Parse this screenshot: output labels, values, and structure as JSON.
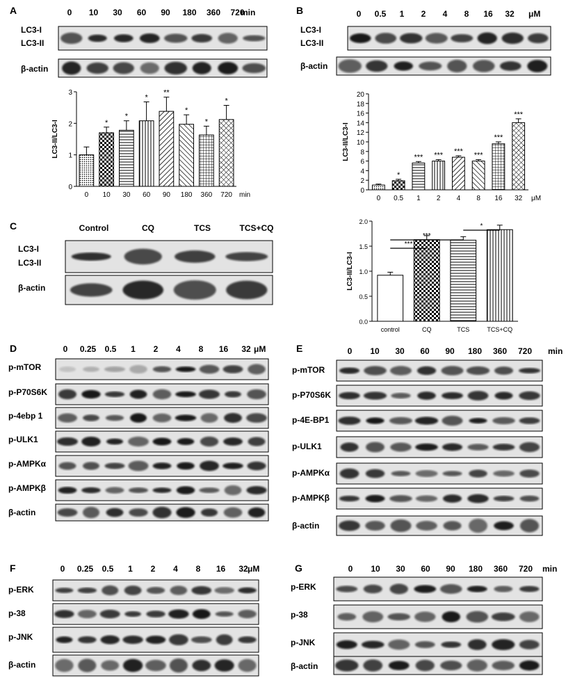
{
  "panels": {
    "A": {
      "letter": "A",
      "lanes": [
        "0",
        "10",
        "30",
        "60",
        "90",
        "180",
        "360",
        "720"
      ],
      "lane_unit": "min",
      "blot_rows": [
        "LC3-I",
        "LC3-II",
        "β-actin"
      ],
      "chart": {
        "ylabel": "LC3-II/LC3-I",
        "ylim": [
          0,
          3
        ],
        "yticks": [
          "0",
          "1",
          "2",
          "3"
        ],
        "x_unit": "min"
      }
    },
    "B": {
      "letter": "B",
      "lanes": [
        "0",
        "0.5",
        "1",
        "2",
        "4",
        "8",
        "16",
        "32"
      ],
      "lane_unit": "μM",
      "blot_rows": [
        "LC3-I",
        "LC3-II",
        "β-actin"
      ],
      "chart": {
        "ylabel": "LC3-II/LC3-I",
        "ylim": [
          0,
          20
        ],
        "yticks": [
          "0",
          "2",
          "4",
          "6",
          "8",
          "10",
          "12",
          "14",
          "16",
          "18",
          "20"
        ],
        "x_unit": "μM"
      }
    },
    "C": {
      "letter": "C",
      "lanes": [
        "Control",
        "CQ",
        "TCS",
        "TCS+CQ"
      ],
      "blot_rows": [
        "LC3-I",
        "LC3-II",
        "β-actin"
      ],
      "chart": {
        "ylabel": "LC3-II/LC3-I",
        "ylim": [
          0,
          2
        ],
        "yticks": [
          "0.0",
          "0.5",
          "1.0",
          "1.5",
          "2.0"
        ],
        "brackets": [
          {
            "from": 0,
            "to": 1,
            "label": "***"
          },
          {
            "from": 0,
            "to": 2,
            "label": "***"
          },
          {
            "from": 2,
            "to": 3,
            "label": "*"
          }
        ]
      }
    },
    "D": {
      "letter": "D",
      "lanes": [
        "0",
        "0.25",
        "0.5",
        "1",
        "2",
        "4",
        "8",
        "16",
        "32"
      ],
      "lane_unit": "μM",
      "rows": [
        "p-mTOR",
        "p-P70S6K",
        "p-4ebp 1",
        "p-ULK1",
        "p-AMPKα",
        "p-AMPKβ",
        "β-actin"
      ]
    },
    "E": {
      "letter": "E",
      "lanes": [
        "0",
        "10",
        "30",
        "60",
        "90",
        "180",
        "360",
        "720"
      ],
      "lane_unit": "min",
      "rows": [
        "p-mTOR",
        "p-P70S6K",
        "p-4E-BP1",
        "p-ULK1",
        "p-AMPKα",
        "p-AMPKβ",
        "β-actin"
      ]
    },
    "F": {
      "letter": "F",
      "lanes": [
        "0",
        "0.25",
        "0.5",
        "1",
        "2",
        "4",
        "8",
        "16",
        "32"
      ],
      "lane_unit": "μM",
      "rows": [
        "p-ERK",
        "p-38",
        "p-JNK",
        "β-actin"
      ]
    },
    "G": {
      "letter": "G",
      "lanes": [
        "0",
        "10",
        "30",
        "60",
        "90",
        "180",
        "360",
        "720"
      ],
      "lane_unit": "min",
      "rows": [
        "p-ERK",
        "p-38",
        "p-JNK",
        "β-actin"
      ]
    }
  },
  "chart_data": [
    {
      "panel": "A",
      "type": "bar",
      "categories": [
        "0",
        "10",
        "30",
        "60",
        "90",
        "180",
        "360",
        "720"
      ],
      "values": [
        1.0,
        1.7,
        1.78,
        2.08,
        2.38,
        1.97,
        1.63,
        2.12
      ],
      "errors": [
        0.25,
        0.18,
        0.3,
        0.6,
        0.45,
        0.3,
        0.28,
        0.45
      ],
      "significance": [
        "",
        "*",
        "*",
        "*",
        "**",
        "*",
        "*",
        "*"
      ],
      "ylabel": "LC3-II/LC3-I",
      "xlabel": "min",
      "ylim": [
        0,
        3
      ]
    },
    {
      "panel": "B",
      "type": "bar",
      "categories": [
        "0",
        "0.5",
        "1",
        "2",
        "4",
        "8",
        "16",
        "32"
      ],
      "values": [
        1.0,
        1.9,
        5.6,
        6.0,
        6.8,
        6.0,
        9.6,
        14.0
      ],
      "errors": [
        0.2,
        0.3,
        0.3,
        0.3,
        0.3,
        0.3,
        0.4,
        0.8
      ],
      "significance": [
        "",
        "*",
        "***",
        "***",
        "***",
        "***",
        "***",
        "***"
      ],
      "ylabel": "LC3-II/LC3-I",
      "xlabel": "μM",
      "ylim": [
        0,
        20
      ]
    },
    {
      "panel": "C",
      "type": "bar",
      "categories": [
        "control",
        "CQ",
        "TCS",
        "TCS+CQ"
      ],
      "values": [
        0.92,
        1.63,
        1.62,
        1.83
      ],
      "errors": [
        0.06,
        0.08,
        0.07,
        0.09
      ],
      "ylabel": "LC3-II/LC3-I",
      "ylim": [
        0,
        2
      ]
    }
  ],
  "colors": {
    "text": "#000000",
    "blot_bg": "#d9d9d9",
    "band": "#1a1a1a"
  }
}
